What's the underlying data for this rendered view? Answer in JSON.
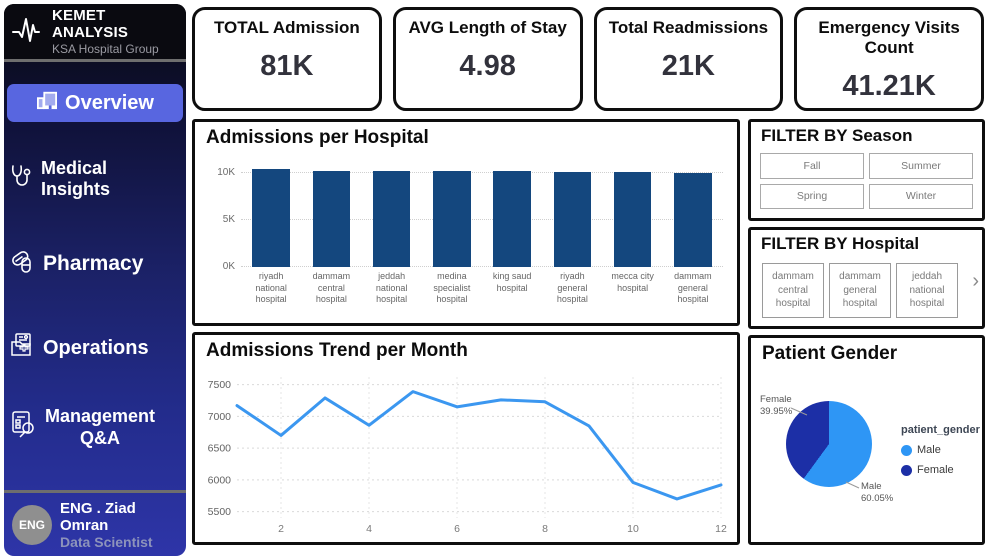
{
  "sidebar": {
    "logo_title": "KEMET ANALYSIS",
    "logo_subtitle": "KSA Hospital Group",
    "items": [
      {
        "label": "Overview",
        "icon": "hospital-building-icon",
        "active": true
      },
      {
        "label": "Medical Insights",
        "icon": "stethoscope-icon",
        "active": false
      },
      {
        "label": "Pharmacy",
        "icon": "pills-icon",
        "active": false
      },
      {
        "label": "Operations",
        "icon": "medical-folder-icon",
        "active": false
      },
      {
        "label": "Management\nQ&A",
        "icon": "report-magnifier-icon",
        "active": false
      }
    ],
    "footer": {
      "avatar_text": "ENG",
      "name": "ENG . Ziad Omran",
      "role": "Data Scientist"
    }
  },
  "kpis": [
    {
      "title": "TOTAL Admission",
      "value": "81K"
    },
    {
      "title": "AVG Length of Stay",
      "value": "4.98"
    },
    {
      "title": "Total Readmissions",
      "value": "21K"
    },
    {
      "title": "Emergency Visits Count",
      "value": "41.21K"
    }
  ],
  "filters": {
    "season": {
      "title": "FILTER BY Season",
      "options": [
        "Fall",
        "Summer",
        "Spring",
        "Winter"
      ]
    },
    "hospital": {
      "title": "FILTER BY Hospital",
      "options": [
        "dammam central hospital",
        "dammam general hospital",
        "jeddah national hospital"
      ],
      "more_icon": "chevron-right-icon",
      "more_glyph": "›"
    }
  },
  "colors": {
    "accent_nav": "#5866e0",
    "bar": "#14477E",
    "line": "#3B97F0",
    "pie_male": "#2E96F5",
    "pie_female": "#1C2FA6"
  },
  "chart_data": [
    {
      "id": "admissions_per_hospital",
      "type": "bar",
      "title": "Admissions per Hospital",
      "categories": [
        "riyadh national hospital",
        "dammam central hospital",
        "jeddah national hospital",
        "medina specialist hospital",
        "king saud hospital",
        "riyadh general hospital",
        "mecca city hospital",
        "dammam general hospital"
      ],
      "values": [
        10400,
        10200,
        10180,
        10120,
        10140,
        10080,
        10020,
        9900
      ],
      "ylabel": "",
      "xlabel": "",
      "yticks": [
        0,
        5000,
        10000
      ],
      "ytick_labels": [
        "0K",
        "5K",
        "10K"
      ],
      "ylim": [
        0,
        10900
      ],
      "grid": true,
      "bar_color": "#14477E"
    },
    {
      "id": "admissions_trend_per_month",
      "type": "line",
      "title": "Admissions Trend per Month",
      "x": [
        1,
        2,
        3,
        4,
        5,
        6,
        7,
        8,
        9,
        10,
        11,
        12
      ],
      "values": [
        7170,
        6700,
        7290,
        6860,
        7390,
        7150,
        7260,
        7230,
        6850,
        5960,
        5700,
        5920
      ],
      "xticks": [
        2,
        4,
        6,
        8,
        10,
        12
      ],
      "yticks": [
        5500,
        6000,
        6500,
        7000,
        7500
      ],
      "ylim": [
        5400,
        7620
      ],
      "grid": true,
      "line_color": "#3B97F0"
    },
    {
      "id": "patient_gender",
      "type": "pie",
      "title": "Patient Gender",
      "legend_title": "patient_gender",
      "legend_position": "right",
      "slices": [
        {
          "label": "Male",
          "pct": 60.05,
          "color": "#2E96F5"
        },
        {
          "label": "Female",
          "pct": 39.95,
          "color": "#1C2FA6"
        }
      ]
    }
  ]
}
